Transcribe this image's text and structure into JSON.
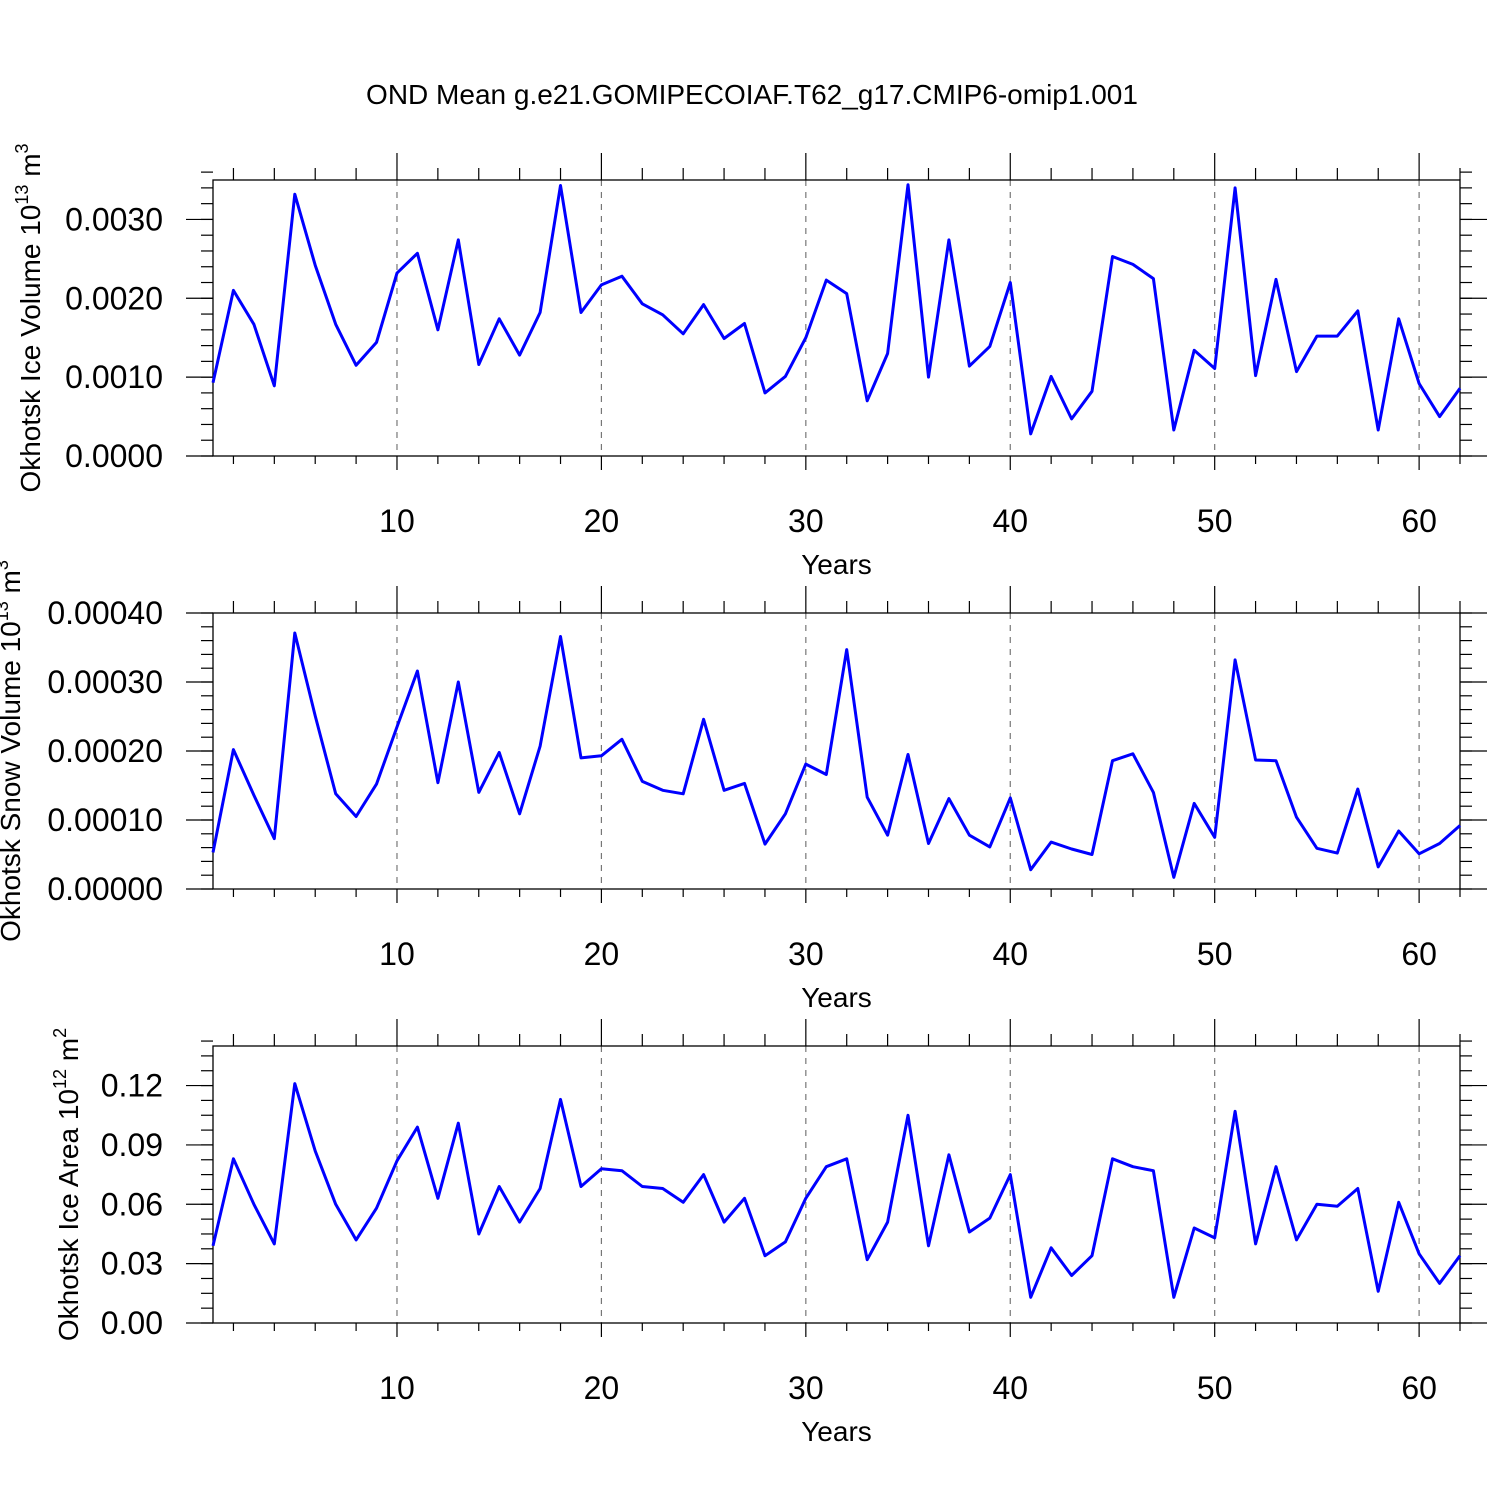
{
  "title": "OND Mean g.e21.GOMIPECOIAF.T62_g17.CMIP6-omip1.001",
  "chart_data": [
    {
      "type": "line",
      "name": "ice-volume",
      "xlabel": "Years",
      "ylabel_main": "Okhotsk Ice Volume 10",
      "ylabel_exp": "13",
      "ylabel_unit": " m",
      "ylabel_unit_exp": "3",
      "xlim": [
        1,
        62
      ],
      "ylim": [
        0,
        0.0035
      ],
      "x_ticks": [
        10,
        20,
        30,
        40,
        50,
        60
      ],
      "x_tick_labels": [
        "10",
        "20",
        "30",
        "40",
        "50",
        "60"
      ],
      "y_ticks": [
        0,
        0.001,
        0.002,
        0.003
      ],
      "y_tick_labels": [
        "0.0000",
        "0.0010",
        "0.0020",
        "0.0030"
      ],
      "y_minor_step": 0.0002,
      "grid": "vertical-dashed",
      "color": "#0000ff",
      "x": [
        1,
        2,
        3,
        4,
        5,
        6,
        7,
        8,
        9,
        10,
        11,
        12,
        13,
        14,
        15,
        16,
        17,
        18,
        19,
        20,
        21,
        22,
        23,
        24,
        25,
        26,
        27,
        28,
        29,
        30,
        31,
        32,
        33,
        34,
        35,
        36,
        37,
        38,
        39,
        40,
        41,
        42,
        43,
        44,
        45,
        46,
        47,
        48,
        49,
        50,
        51,
        52,
        53,
        54,
        55,
        56,
        57,
        58,
        59,
        60,
        61,
        62
      ],
      "values": [
        0.00093,
        0.0021,
        0.00167,
        0.00089,
        0.00332,
        0.00242,
        0.00167,
        0.00115,
        0.00144,
        0.00232,
        0.00257,
        0.0016,
        0.00274,
        0.00116,
        0.00174,
        0.00128,
        0.00182,
        0.00343,
        0.00182,
        0.00217,
        0.00228,
        0.00193,
        0.00179,
        0.00155,
        0.00192,
        0.00149,
        0.00168,
        0.0008,
        0.00101,
        0.0015,
        0.00223,
        0.00206,
        0.0007,
        0.0013,
        0.00344,
        0.001,
        0.00274,
        0.00114,
        0.00139,
        0.0022,
        0.00028,
        0.00101,
        0.00047,
        0.00082,
        0.00253,
        0.00243,
        0.00225,
        0.00033,
        0.00134,
        0.00111,
        0.0034,
        0.00102,
        0.00224,
        0.00107,
        0.00152,
        0.00152,
        0.00184,
        0.00033,
        0.00174,
        0.00092,
        0.0005,
        0.00086
      ]
    },
    {
      "type": "line",
      "name": "snow-volume",
      "xlabel": "Years",
      "ylabel_main": "Okhotsk Snow Volume 10",
      "ylabel_exp": "13",
      "ylabel_unit": " m",
      "ylabel_unit_exp": "3",
      "xlim": [
        1,
        62
      ],
      "ylim": [
        0,
        0.0004
      ],
      "x_ticks": [
        10,
        20,
        30,
        40,
        50,
        60
      ],
      "x_tick_labels": [
        "10",
        "20",
        "30",
        "40",
        "50",
        "60"
      ],
      "y_ticks": [
        0,
        0.0001,
        0.0002,
        0.0003,
        0.0004
      ],
      "y_tick_labels": [
        "0.00000",
        "0.00010",
        "0.00020",
        "0.00030",
        "0.00040"
      ],
      "y_minor_step": 2e-05,
      "grid": "vertical-dashed",
      "color": "#0000ff",
      "x": [
        1,
        2,
        3,
        4,
        5,
        6,
        7,
        8,
        9,
        10,
        11,
        12,
        13,
        14,
        15,
        16,
        17,
        18,
        19,
        20,
        21,
        22,
        23,
        24,
        25,
        26,
        27,
        28,
        29,
        30,
        31,
        32,
        33,
        34,
        35,
        36,
        37,
        38,
        39,
        40,
        41,
        42,
        43,
        44,
        45,
        46,
        47,
        48,
        49,
        50,
        51,
        52,
        53,
        54,
        55,
        56,
        57,
        58,
        59,
        60,
        61,
        62
      ],
      "values": [
        5.3e-05,
        0.000202,
        0.000136,
        7.3e-05,
        0.000371,
        0.000251,
        0.000138,
        0.000105,
        0.000152,
        0.000235,
        0.000316,
        0.000154,
        0.0003,
        0.00014,
        0.000198,
        0.000109,
        0.000207,
        0.000366,
        0.00019,
        0.000193,
        0.000217,
        0.000156,
        0.000143,
        0.000138,
        0.000246,
        0.000143,
        0.000153,
        6.5e-05,
        0.000109,
        0.000181,
        0.000166,
        0.000347,
        0.000133,
        7.8e-05,
        0.000195,
        6.6e-05,
        0.000131,
        7.8e-05,
        6.1e-05,
        0.000132,
        2.8e-05,
        6.8e-05,
        5.8e-05,
        5e-05,
        0.000186,
        0.000196,
        0.00014,
        1.7e-05,
        0.000124,
        7.5e-05,
        0.000332,
        0.000187,
        0.000186,
        0.000104,
        5.9e-05,
        5.2e-05,
        0.000145,
        3.2e-05,
        8.4e-05,
        5.1e-05,
        6.6e-05,
        9.2e-05
      ]
    },
    {
      "type": "line",
      "name": "ice-area",
      "xlabel": "Years",
      "ylabel_main": "Okhotsk Ice Area 10",
      "ylabel_exp": "12",
      "ylabel_unit": " m",
      "ylabel_unit_exp": "2",
      "xlim": [
        1,
        62
      ],
      "ylim": [
        0,
        0.14
      ],
      "x_ticks": [
        10,
        20,
        30,
        40,
        50,
        60
      ],
      "x_tick_labels": [
        "10",
        "20",
        "30",
        "40",
        "50",
        "60"
      ],
      "y_ticks": [
        0,
        0.03,
        0.06,
        0.09,
        0.12
      ],
      "y_tick_labels": [
        "0.00",
        "0.03",
        "0.06",
        "0.09",
        "0.12"
      ],
      "y_minor_step": 0.0075,
      "grid": "vertical-dashed",
      "color": "#0000ff",
      "x": [
        1,
        2,
        3,
        4,
        5,
        6,
        7,
        8,
        9,
        10,
        11,
        12,
        13,
        14,
        15,
        16,
        17,
        18,
        19,
        20,
        21,
        22,
        23,
        24,
        25,
        26,
        27,
        28,
        29,
        30,
        31,
        32,
        33,
        34,
        35,
        36,
        37,
        38,
        39,
        40,
        41,
        42,
        43,
        44,
        45,
        46,
        47,
        48,
        49,
        50,
        51,
        52,
        53,
        54,
        55,
        56,
        57,
        58,
        59,
        60,
        61,
        62
      ],
      "values": [
        0.039,
        0.083,
        0.06,
        0.04,
        0.121,
        0.087,
        0.06,
        0.042,
        0.058,
        0.082,
        0.099,
        0.063,
        0.101,
        0.045,
        0.069,
        0.051,
        0.068,
        0.113,
        0.069,
        0.078,
        0.077,
        0.069,
        0.068,
        0.061,
        0.075,
        0.051,
        0.063,
        0.034,
        0.041,
        0.063,
        0.079,
        0.083,
        0.032,
        0.051,
        0.105,
        0.039,
        0.085,
        0.046,
        0.053,
        0.075,
        0.013,
        0.038,
        0.024,
        0.034,
        0.083,
        0.079,
        0.077,
        0.013,
        0.048,
        0.043,
        0.107,
        0.04,
        0.079,
        0.042,
        0.06,
        0.059,
        0.068,
        0.016,
        0.061,
        0.035,
        0.02,
        0.034
      ]
    }
  ]
}
